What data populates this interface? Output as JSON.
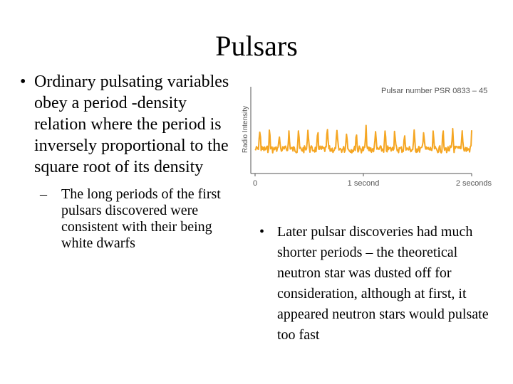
{
  "slide": {
    "title": "Pulsars",
    "bullet_1": "Ordinary pulsating variables obey a period -density relation where the period is inversely proportional to the square root of its density",
    "sub_bullet_1": "The long periods of the first pulsars discovered were consistent with their being white dwarfs",
    "bullet_2": "Later pulsar discoveries had much shorter periods – the theoretical neutron star was dusted off for consideration, although at first, it appeared neutron stars would pulsate too fast"
  },
  "chart_data": {
    "type": "line",
    "title": "Pulsar number PSR 0833 – 45",
    "ylabel": "Radio Intensity",
    "xlabel": "",
    "x_tick_labels": [
      {
        "x": 0,
        "label": "0"
      },
      {
        "x": 1,
        "label": "1 second"
      },
      {
        "x": 2,
        "label": "2 seconds"
      }
    ],
    "xlim": [
      0,
      2
    ],
    "pulse_period_s": 0.089,
    "line_color": "#f5a623",
    "axis_color": "#555555"
  }
}
